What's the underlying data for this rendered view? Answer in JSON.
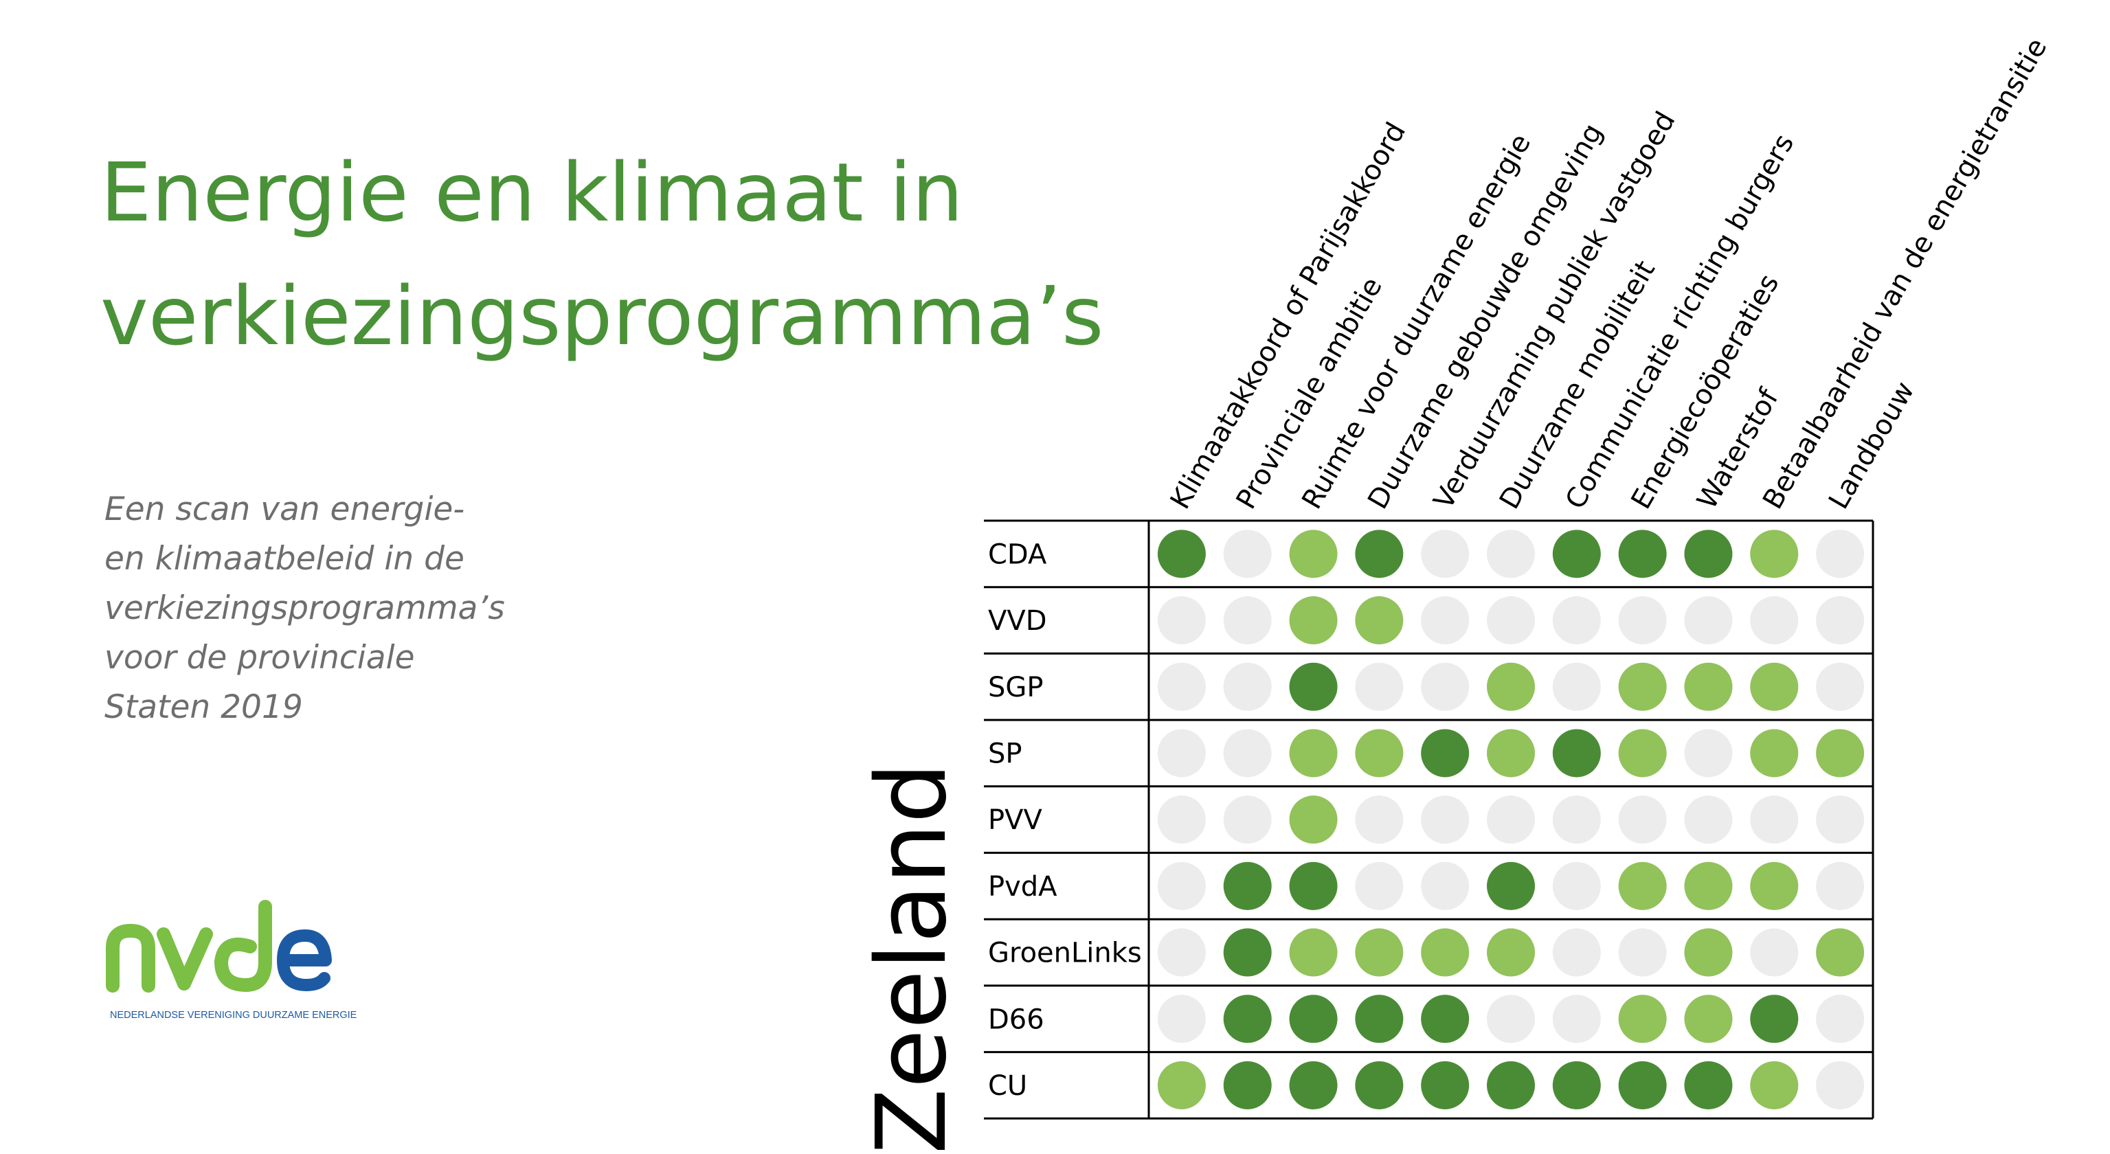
{
  "title": {
    "line1": "Energie en klimaat in",
    "line2": "verkiezingsprogramma’s"
  },
  "subtitle": {
    "line1": "Een scan van energie-",
    "line2": "en klimaatbeleid in de",
    "line3": "verkiezingsprogramma’s",
    "line4": "voor de provinciale",
    "line5": "Staten 2019"
  },
  "logo": {
    "wordmark": "nvde",
    "tagline": "NEDERLANDSE VERENIGING DUURZAME ENERGIE"
  },
  "colors": {
    "title": "#4a9238",
    "dark_green": "#4a8c35",
    "light_green": "#92c25a",
    "grey": "#ececec",
    "grid": "#000000",
    "logo_green": "#7bbf44",
    "logo_blue": "#1d5aa4"
  },
  "chart_data": {
    "type": "table",
    "region": "Zeeland",
    "columns": [
      "Klimaatakkoord of Parijsakkoord",
      "Provinciale ambitie",
      "Ruimte voor duurzame energie",
      "Duurzame gebouwde omgeving",
      "Verduurzaming publiek vastgoed",
      "Duurzame mobiliteit",
      "Communicatie richting burgers",
      "Energiecoöperaties",
      "Waterstof",
      "Betaalbaarheid van de energietransitie",
      "Landbouw"
    ],
    "rows": [
      {
        "party": "CDA",
        "values": [
          2,
          0,
          1,
          2,
          0,
          0,
          2,
          2,
          2,
          1,
          0
        ]
      },
      {
        "party": "VVD",
        "values": [
          0,
          0,
          1,
          1,
          0,
          0,
          0,
          0,
          0,
          0,
          0
        ]
      },
      {
        "party": "SGP",
        "values": [
          0,
          0,
          2,
          0,
          0,
          1,
          0,
          1,
          1,
          1,
          0
        ]
      },
      {
        "party": "SP",
        "values": [
          0,
          0,
          1,
          1,
          2,
          1,
          2,
          1,
          0,
          1,
          1
        ]
      },
      {
        "party": "PVV",
        "values": [
          0,
          0,
          1,
          0,
          0,
          0,
          0,
          0,
          0,
          0,
          0
        ]
      },
      {
        "party": "PvdA",
        "values": [
          0,
          2,
          2,
          0,
          0,
          2,
          0,
          1,
          1,
          1,
          0
        ]
      },
      {
        "party": "GroenLinks",
        "values": [
          0,
          2,
          1,
          1,
          1,
          1,
          0,
          0,
          1,
          0,
          1
        ]
      },
      {
        "party": "D66",
        "values": [
          0,
          2,
          2,
          2,
          2,
          0,
          0,
          1,
          1,
          2,
          0
        ]
      },
      {
        "party": "CU",
        "values": [
          1,
          2,
          2,
          2,
          2,
          2,
          2,
          2,
          2,
          1,
          0
        ]
      }
    ]
  }
}
